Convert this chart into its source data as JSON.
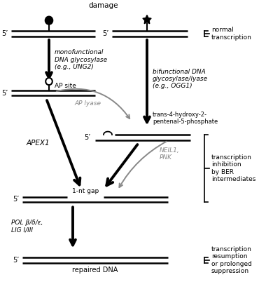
{
  "background": "#ffffff",
  "fig_width": 4.0,
  "fig_height": 4.22,
  "dpi": 100,
  "black": "#000000",
  "gray": "#888888",
  "lw_dna": 1.8,
  "lw_bold_arrow": 2.8,
  "lw_thin_arrow": 1.4,
  "lw_brace": 1.2,
  "label_5prime_left": "5’",
  "label_dna_damage": "DNA base\ndamage",
  "label_mono": "monofunctional\nDNA glycosylase\n(e.g., UNG2)",
  "label_bi": "bifunctional DNA\nglycosylase/lyase\n(e.g., OGG1)",
  "label_ap_site": "AP site",
  "label_ap_lyase": "AP lyase",
  "label_trans4": "trans-4-hydroxy-2-\npentenal-5-phosphate",
  "label_apex1": "APEX1",
  "label_neil1": "NEIL1,\nPNK",
  "label_1nt": "1-nt gap",
  "label_pol": "POL β/δ/ε,\nLIG I/III",
  "label_repaired": "repaired DNA",
  "label_normal_tx": "normal\ntranscription",
  "label_tx_inhibition": "transcription\ninhibition\nby BER\nintermediates",
  "label_tx_resumption": "transcription\nresumption\nor prolonged\nsuppression"
}
